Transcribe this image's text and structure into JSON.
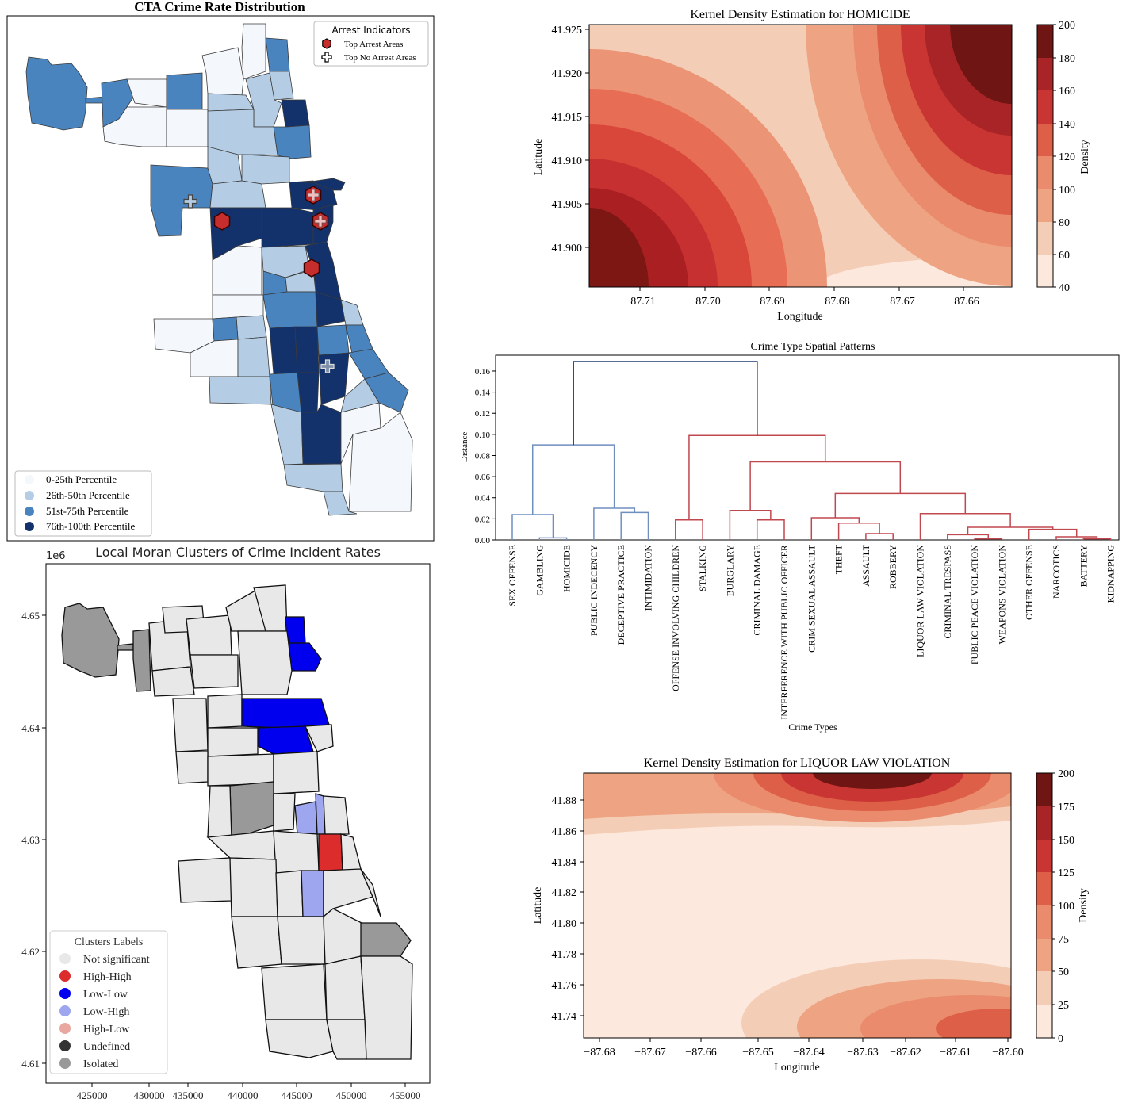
{
  "cta_map": {
    "title": "CTA Crime Rate Distribution",
    "indicator_legend": {
      "title": "Arrest Indicators",
      "items": [
        {
          "label": "Top Arrest Areas",
          "icon": "hexagon-marker-icon",
          "color": "#c62d2d"
        },
        {
          "label": "Top No Arrest Areas",
          "icon": "plus-marker-icon",
          "color": "#ffffff"
        }
      ]
    },
    "percentile_legend": [
      {
        "label": "0-25th Percentile",
        "color": "#f4f8fd"
      },
      {
        "label": "26th-50th Percentile",
        "color": "#b4cde4"
      },
      {
        "label": "51st-75th Percentile",
        "color": "#4a84bf"
      },
      {
        "label": "76th-100th Percentile",
        "color": "#13326b"
      }
    ]
  },
  "moran_map": {
    "title": "Local Moran Clusters of Crime Incident Rates",
    "y_exponent": "1e6",
    "y_ticks": [
      "4.65",
      "4.64",
      "4.63",
      "4.62",
      "4.61"
    ],
    "x_ticks": [
      "425000",
      "430000",
      "435000",
      "440000",
      "445000",
      "450000",
      "455000"
    ],
    "legend_title": "Clusters Labels",
    "legend": [
      {
        "label": "Not significant",
        "color": "#e8e8e8"
      },
      {
        "label": "High-High",
        "color": "#dd2c2c"
      },
      {
        "label": "Low-Low",
        "color": "#0000ee"
      },
      {
        "label": "Low-High",
        "color": "#9fa6f0"
      },
      {
        "label": "High-Low",
        "color": "#e8a8a0"
      },
      {
        "label": "Undefined",
        "color": "#333333"
      },
      {
        "label": "Isolated",
        "color": "#999999"
      }
    ]
  },
  "chart_data": [
    {
      "type": "heatmap",
      "title": "Kernel Density Estimation for HOMICIDE",
      "xlabel": "Longitude",
      "ylabel": "Latitude",
      "x_ticks": [
        "−87.71",
        "−87.70",
        "−87.69",
        "−87.68",
        "−87.67",
        "−87.66"
      ],
      "y_ticks": [
        "41.925",
        "41.920",
        "41.915",
        "41.910",
        "41.905",
        "41.900"
      ],
      "colorbar_label": "Density",
      "colorbar_ticks": [
        "200",
        "180",
        "160",
        "140",
        "120",
        "100",
        "80",
        "60",
        "40"
      ],
      "colorbar_range": [
        40,
        200
      ]
    },
    {
      "type": "dendrogram",
      "title": "Crime Type Spatial Patterns",
      "xlabel": "Crime Types",
      "ylabel": "Distance",
      "y_ticks": [
        "0.16",
        "0.14",
        "0.12",
        "0.10",
        "0.08",
        "0.06",
        "0.04",
        "0.02",
        "0.00"
      ],
      "ylim": [
        0,
        0.175
      ],
      "categories": [
        "SEX OFFENSE",
        "GAMBLING",
        "HOMICIDE",
        "PUBLIC INDECENCY",
        "DECEPTIVE PRACTICE",
        "INTIMIDATION",
        "OFFENSE INVOLVING CHILDREN",
        "STALKING",
        "BURGLARY",
        "CRIMINAL DAMAGE",
        "INTERFERENCE WITH PUBLIC OFFICER",
        "CRIM SEXUAL ASSAULT",
        "THEFT",
        "ASSAULT",
        "ROBBERY",
        "LIQUOR LAW VIOLATION",
        "CRIMINAL TRESPASS",
        "PUBLIC PEACE VIOLATION",
        "WEAPONS VIOLATION",
        "OTHER OFFENSE",
        "NARCOTICS",
        "BATTERY",
        "KIDNAPPING"
      ],
      "series": [
        {
          "cluster": "blue",
          "color": "#6f8fbf"
        },
        {
          "cluster": "red",
          "color": "#c0484f"
        }
      ]
    },
    {
      "type": "heatmap",
      "title": "Kernel Density Estimation for LIQUOR LAW VIOLATION",
      "xlabel": "Longitude",
      "ylabel": "Latitude",
      "x_ticks": [
        "−87.68",
        "−87.67",
        "−87.66",
        "−87.65",
        "−87.64",
        "−87.63",
        "−87.62",
        "−87.61",
        "−87.60"
      ],
      "y_ticks": [
        "41.88",
        "41.86",
        "41.84",
        "41.82",
        "41.80",
        "41.78",
        "41.76",
        "41.74"
      ],
      "colorbar_label": "Density",
      "colorbar_ticks": [
        "200",
        "175",
        "150",
        "125",
        "100",
        "75",
        "50",
        "25",
        "0"
      ],
      "colorbar_range": [
        0,
        200
      ]
    }
  ]
}
